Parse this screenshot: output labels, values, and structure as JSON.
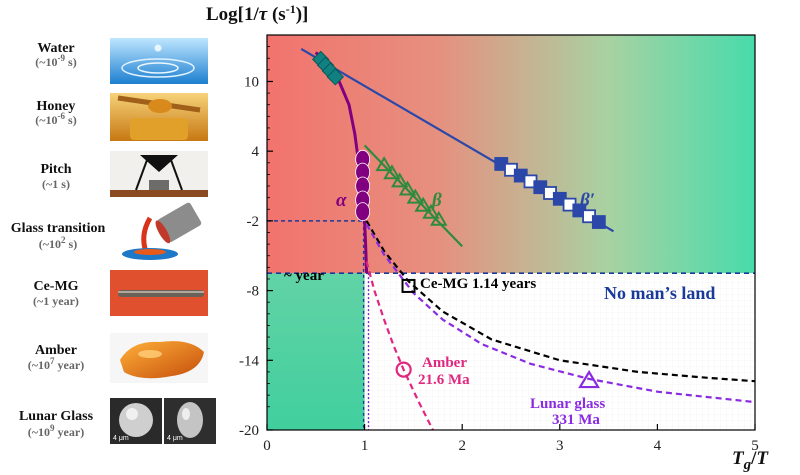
{
  "chart_data": {
    "type": "line",
    "title": "",
    "ylabel": "Log[1/τ (s⁻¹)]",
    "ylabel_main": "Log[1/",
    "ylabel_tau": "τ",
    "ylabel_unit": " (s",
    "ylabel_exp": "-1",
    "ylabel_close": ")]",
    "xlabel": "Tg/T",
    "xlabel_T": "T",
    "xlabel_g": "g",
    "xlabel_slash": "/",
    "xlabel_T2": "T",
    "xlim": [
      0,
      5
    ],
    "ylim": [
      -20,
      14
    ],
    "xticks": [
      "0",
      "1",
      "2",
      "3",
      "4",
      "5"
    ],
    "yticks": [
      "10",
      "4",
      "-2",
      "-8",
      "-14",
      "-20"
    ],
    "ytick_values": [
      10,
      4,
      -2,
      -8,
      -14,
      -20
    ],
    "year_level": -6.5,
    "tg_level": -2.0,
    "series": [
      {
        "name": "α",
        "color": "#800080",
        "x": [
          0.5,
          0.62,
          0.74,
          0.84,
          0.9,
          0.94,
          0.97,
          0.99,
          1.0,
          1.01,
          1.02
        ],
        "y": [
          12.5,
          11.5,
          10.0,
          8.0,
          5.5,
          3.0,
          0.8,
          -1.0,
          -2.0,
          -4.0,
          -6.5
        ]
      },
      {
        "name": "β",
        "color": "#2e8b3e",
        "x": [
          1.0,
          2.0
        ],
        "y": [
          4.5,
          -4.2
        ]
      },
      {
        "name": "β′",
        "color": "#2b47a8",
        "x": [
          0.35,
          3.55
        ],
        "y": [
          12.8,
          -2.9
        ]
      },
      {
        "name": "Ce-MG extrapolation",
        "color": "#000000",
        "x": [
          1.02,
          1.2,
          1.45,
          1.8,
          2.3,
          3.0,
          3.8,
          4.5,
          5.0
        ],
        "y": [
          -2.0,
          -4.6,
          -7.2,
          -9.8,
          -12.2,
          -14.0,
          -15.0,
          -15.5,
          -15.8
        ]
      },
      {
        "name": "Lunar glass extrapolation",
        "color": "#8a2be2",
        "x": [
          1.02,
          1.2,
          1.5,
          1.8,
          2.2,
          2.7,
          3.3,
          4.0,
          5.0
        ],
        "y": [
          -2.3,
          -4.9,
          -8.2,
          -10.5,
          -12.6,
          -14.3,
          -15.6,
          -16.7,
          -17.6
        ]
      },
      {
        "name": "Amber extrapolation",
        "color": "#e0267e",
        "x": [
          1.02,
          1.1,
          1.2,
          1.3,
          1.4,
          1.55,
          1.7
        ],
        "y": [
          -5.5,
          -8.0,
          -10.5,
          -12.8,
          -14.8,
          -17.5,
          -20.0
        ]
      }
    ],
    "markers": {
      "alpha": {
        "x": [
          0.98,
          0.98,
          0.98,
          0.98,
          0.98
        ],
        "y": [
          3.3,
          2.2,
          1.0,
          -0.2,
          -1.2
        ],
        "color": "#800080"
      },
      "beta": {
        "x": [
          1.2,
          1.28,
          1.36,
          1.44,
          1.52,
          1.6,
          1.68,
          1.76
        ],
        "y": [
          2.8,
          2.1,
          1.4,
          0.7,
          0.0,
          -0.7,
          -1.3,
          -1.9
        ],
        "color": "#2e8b3e"
      },
      "beta_prime": {
        "x": [
          2.4,
          2.5,
          2.6,
          2.7,
          2.8,
          2.9,
          3.0,
          3.1,
          3.2,
          3.3,
          3.4
        ],
        "y": [
          2.9,
          2.4,
          1.9,
          1.4,
          0.9,
          0.4,
          -0.1,
          -0.6,
          -1.1,
          -1.6,
          -2.1
        ],
        "color": "#2b47a8"
      },
      "cluster": {
        "x": [
          0.55,
          0.6,
          0.65,
          0.7
        ],
        "y": [
          11.9,
          11.4,
          10.9,
          10.4
        ],
        "color": "#108080"
      }
    },
    "points": [
      {
        "name": "Ce-MG",
        "x": 1.45,
        "y": -7.6,
        "shape": "square",
        "color": "#000000"
      },
      {
        "name": "Amber",
        "x": 1.4,
        "y": -14.8,
        "shape": "circle",
        "color": "#e0267e"
      },
      {
        "name": "Lunar glass",
        "x": 3.3,
        "y": -15.7,
        "shape": "triangle",
        "color": "#8a2be2"
      }
    ],
    "annotations": {
      "alpha_label": "α",
      "beta_label": "β",
      "beta_prime_label": "β′",
      "year_label": "~ year",
      "cemg_label": "Ce-MG 1.14 years",
      "no_mans_land": "No man’s land",
      "amber_line1": "Amber",
      "amber_line2": "21.6 Ma",
      "lunar_line1": "Lunar glass",
      "lunar_line2": "331 Ma"
    },
    "background": {
      "left_color": "#f2736d",
      "right_color": "#48dbab",
      "bottom_left_color": "#48dbab"
    }
  },
  "samples": [
    {
      "label": "Water",
      "time_pre": "(~10",
      "time_exp": "-9",
      "time_post": " s)",
      "image": "water-drop-photo"
    },
    {
      "label": "Honey",
      "time_pre": "(~10",
      "time_exp": "-6",
      "time_post": " s)",
      "image": "honey-dipper-photo"
    },
    {
      "label": "Pitch",
      "time_pre": "(~1 s)",
      "time_exp": "",
      "time_post": "",
      "image": "pitch-drop-photo"
    },
    {
      "label": "Glass transition",
      "time_pre": "(~10",
      "time_exp": "2",
      "time_post": " s)",
      "image": "molten-glass-pour-photo"
    },
    {
      "label": "Ce-MG",
      "time_pre": "(~1  year)",
      "time_exp": "",
      "time_post": "",
      "image": "ce-mg-rod-photo"
    },
    {
      "label": "Amber",
      "time_pre": "(~10",
      "time_exp": "7",
      "time_post": " year)",
      "image": "amber-photo"
    },
    {
      "label": "Lunar Glass",
      "time_pre": "(~10",
      "time_exp": "9",
      "time_post": " year)",
      "image": "lunar-glass-sem-photo"
    }
  ],
  "scale_bars": [
    "4 μm",
    "4 μm"
  ]
}
